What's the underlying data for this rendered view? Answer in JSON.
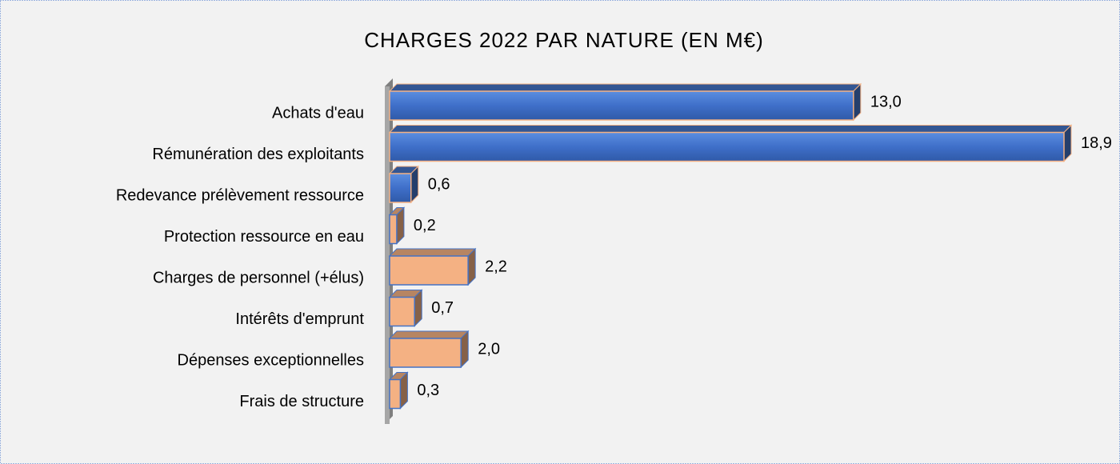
{
  "chart_data": {
    "type": "bar3d_horizontal",
    "title": "CHARGES 2022 PAR NATURE (EN M€)",
    "categories": [
      "Achats d'eau",
      "Rémunération des exploitants",
      "Redevance prélèvement ressource",
      "Protection ressource en eau",
      "Charges de personnel (+élus)",
      "Intérêts d'emprunt",
      "Dépenses exceptionnelles",
      "Frais de structure"
    ],
    "values": [
      13.0,
      18.9,
      0.6,
      0.2,
      2.2,
      0.7,
      2.0,
      0.3
    ],
    "value_labels": [
      "13,0",
      "18,9",
      "0,6",
      "0,2",
      "2,2",
      "0,7",
      "2,0",
      "0,3"
    ],
    "colors": [
      "#4472c4",
      "#4472c4",
      "#4472c4",
      "#f4b183",
      "#f4b183",
      "#f4b183",
      "#f4b183",
      "#f4b183"
    ],
    "edge_colors": [
      "#f4b183",
      "#f4b183",
      "#f4b183",
      "#4472c4",
      "#4472c4",
      "#4472c4",
      "#4472c4",
      "#4472c4"
    ]
  }
}
